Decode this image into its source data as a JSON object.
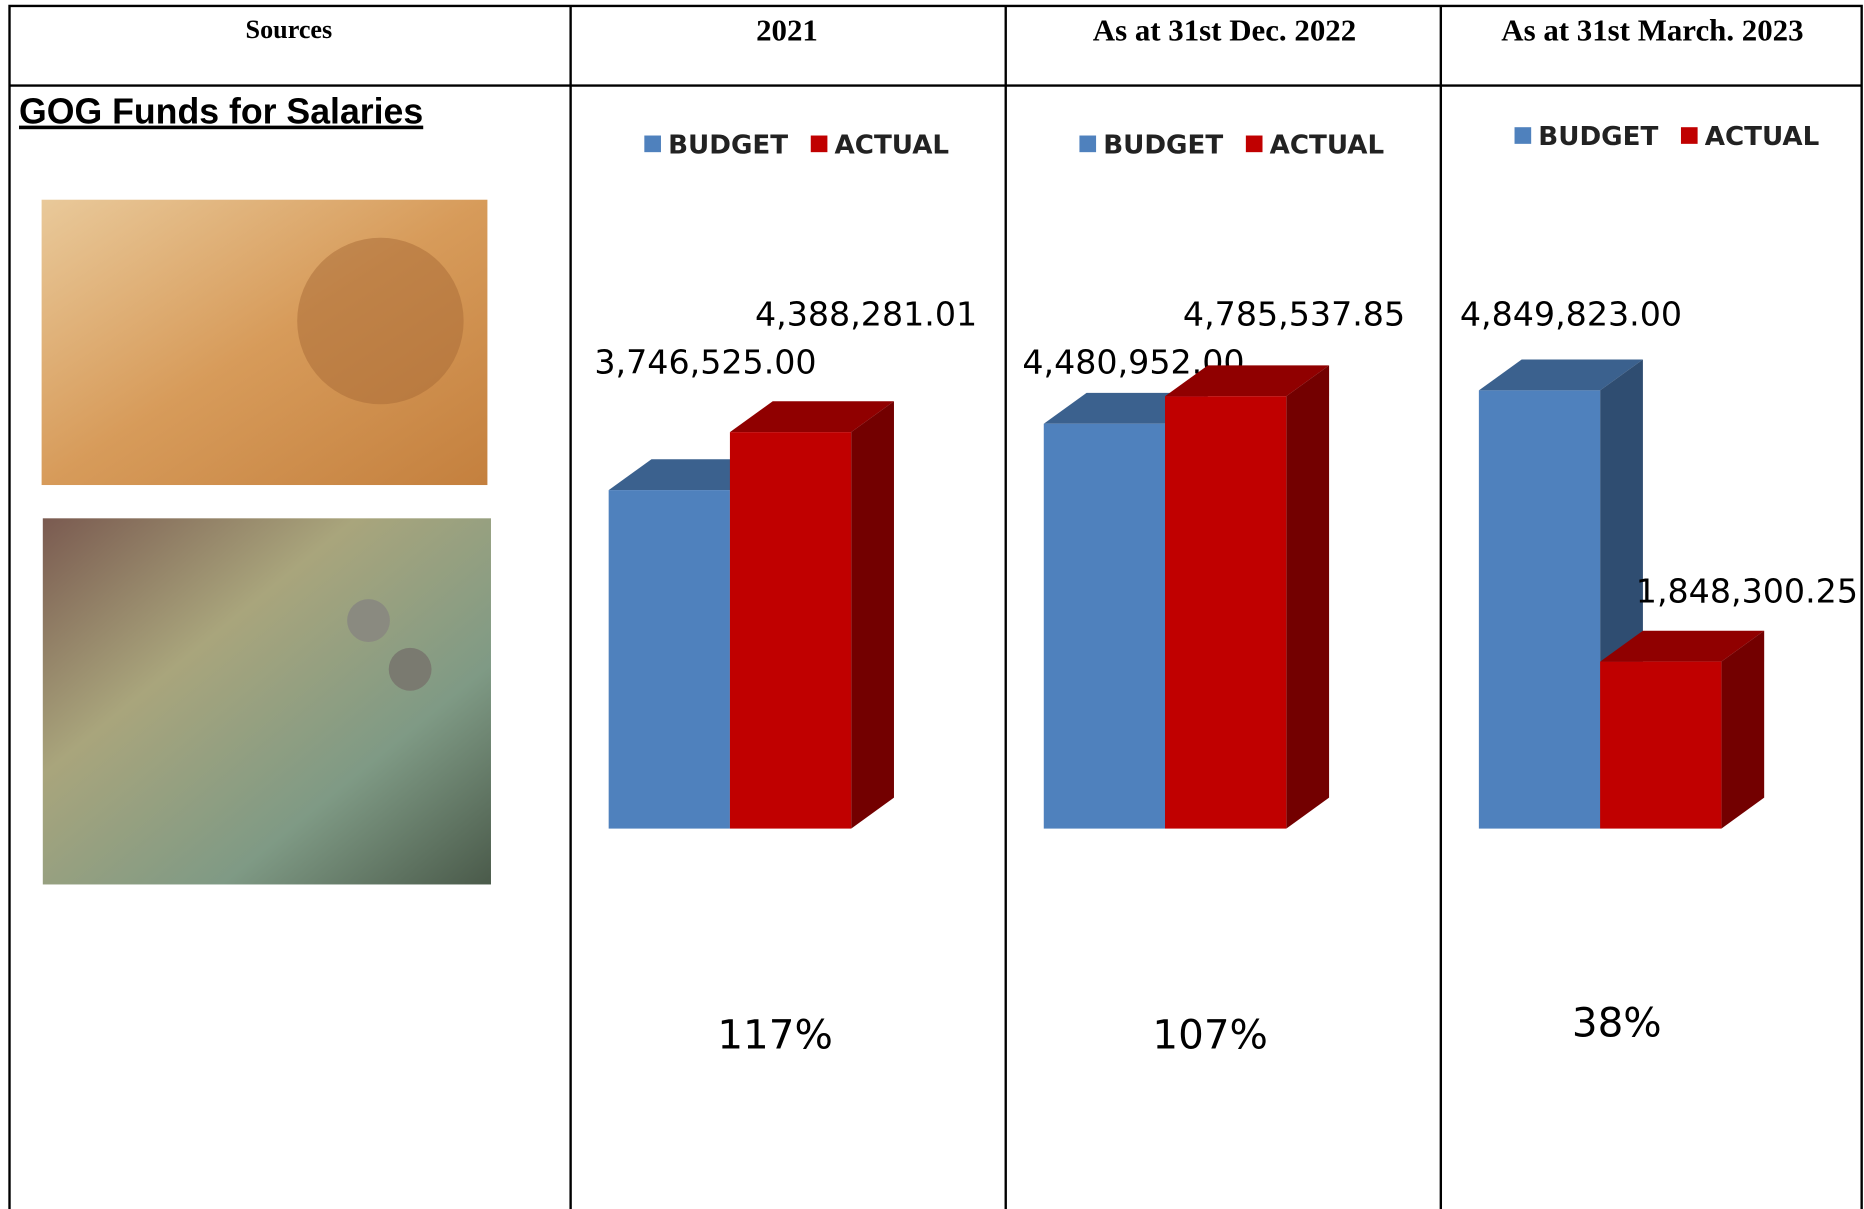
{
  "table": {
    "headers": [
      "Sources",
      "2021",
      "As at 31st Dec. 2022",
      "As at 31st March. 2023"
    ],
    "source": "GOG Funds for Salaries"
  },
  "chart_data": [
    {
      "type": "bar",
      "ylim": [
        0,
        5000000
      ],
      "annotation": "117%",
      "series": [
        {
          "name": "BUDGET",
          "color": "#4f81bd",
          "values": [
            3746525.0
          ],
          "value_labels": [
            "3,746,525.00"
          ]
        },
        {
          "name": "ACTUAL",
          "color": "#c00000",
          "values": [
            4388281.01
          ],
          "value_labels": [
            "4,388,281.01"
          ]
        }
      ]
    },
    {
      "type": "bar",
      "ylim": [
        0,
        5000000
      ],
      "annotation": "107%",
      "series": [
        {
          "name": "BUDGET",
          "color": "#4f81bd",
          "values": [
            4480952.0
          ],
          "value_labels": [
            "4,480,952.00"
          ]
        },
        {
          "name": "ACTUAL",
          "color": "#c00000",
          "values": [
            4785537.85
          ],
          "value_labels": [
            "4,785,537.85"
          ]
        }
      ]
    },
    {
      "type": "bar",
      "ylim": [
        0,
        5000000
      ],
      "annotation": "38%",
      "series": [
        {
          "name": "BUDGET",
          "color": "#4f81bd",
          "values": [
            4849823.0
          ],
          "value_labels": [
            "4,849,823.00"
          ]
        },
        {
          "name": "ACTUAL",
          "color": "#c00000",
          "values": [
            1848300.25
          ],
          "value_labels": [
            "1,848,300.25"
          ]
        }
      ]
    }
  ]
}
